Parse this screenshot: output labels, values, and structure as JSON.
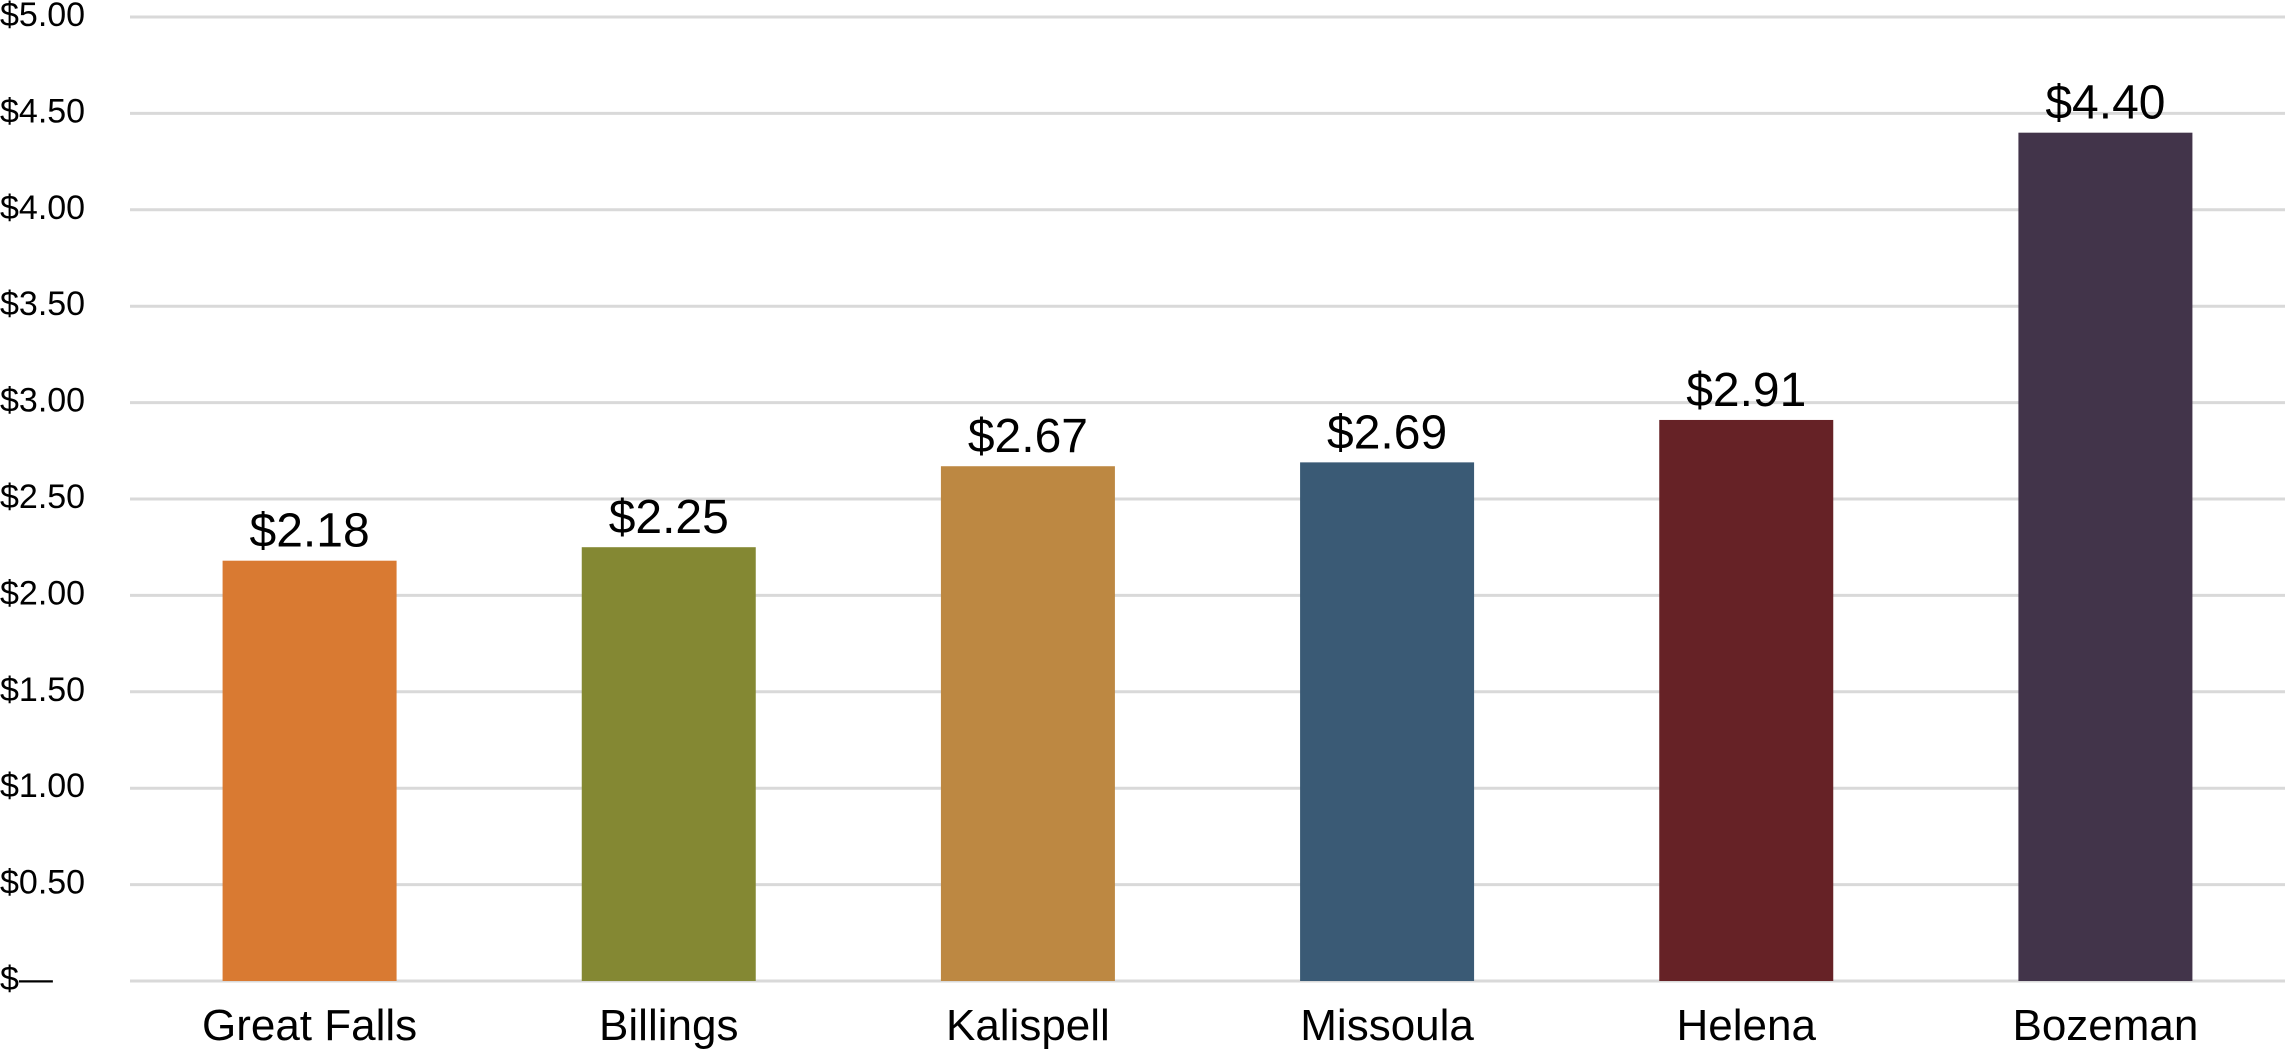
{
  "chart_data": {
    "type": "bar",
    "title": "",
    "xlabel": "",
    "ylabel": "",
    "categories": [
      "Great Falls",
      "Billings",
      "Kalispell",
      "Missoula",
      "Helena",
      "Bozeman"
    ],
    "values": [
      2.18,
      2.25,
      2.67,
      2.69,
      2.91,
      4.4
    ],
    "data_labels": [
      "$2.18",
      "$2.25",
      "$2.67",
      "$2.69",
      "$2.91",
      "$4.40"
    ],
    "colors": [
      "#d97a32",
      "#848833",
      "#bd8842",
      "#3a5a75",
      "#662226",
      "#42344a"
    ],
    "ylim": [
      0,
      5
    ],
    "yticks": [
      0,
      0.5,
      1,
      1.5,
      2,
      2.5,
      3,
      3.5,
      4,
      4.5,
      5
    ],
    "ytick_labels": [
      "$—",
      "$0.50",
      "$1.00",
      "$1.50",
      "$2.00",
      "$2.50",
      "$3.00",
      "$3.50",
      "$4.00",
      "$4.50",
      "$5.00"
    ],
    "grid": true,
    "legend": "none"
  }
}
